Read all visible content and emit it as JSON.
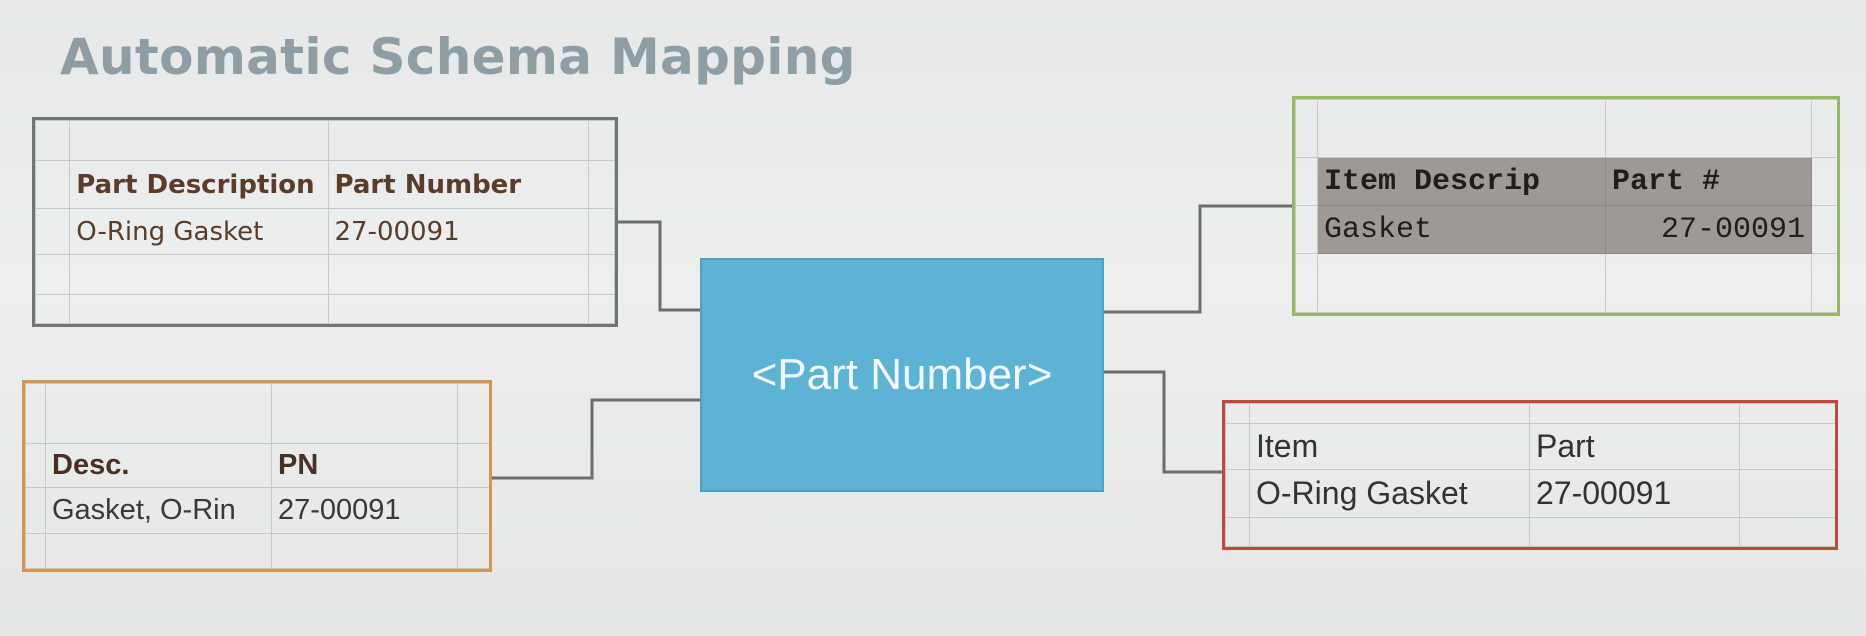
{
  "title": "Automatic Schema Mapping",
  "center": {
    "label": "<Part Number>",
    "color": "#5db3d3"
  },
  "tables": {
    "gray": {
      "border_color": "#6f7577",
      "headers": [
        "Part Description",
        "Part Number"
      ],
      "row": [
        "O-Ring Gasket",
        "27-00091"
      ]
    },
    "orange": {
      "border_color": "#d89350",
      "headers": [
        "Desc.",
        "PN"
      ],
      "row": [
        "Gasket, O-Rin",
        "27-00091"
      ]
    },
    "green": {
      "border_color": "#93b963",
      "headers": [
        "Item Descrip",
        "Part #"
      ],
      "row": [
        "Gasket",
        "27-00091"
      ]
    },
    "red": {
      "border_color": "#c0483a",
      "headers": [
        "Item",
        "Part"
      ],
      "row": [
        "O-Ring Gasket",
        "27-00091"
      ]
    }
  },
  "connector_color": "#6d6d6d"
}
